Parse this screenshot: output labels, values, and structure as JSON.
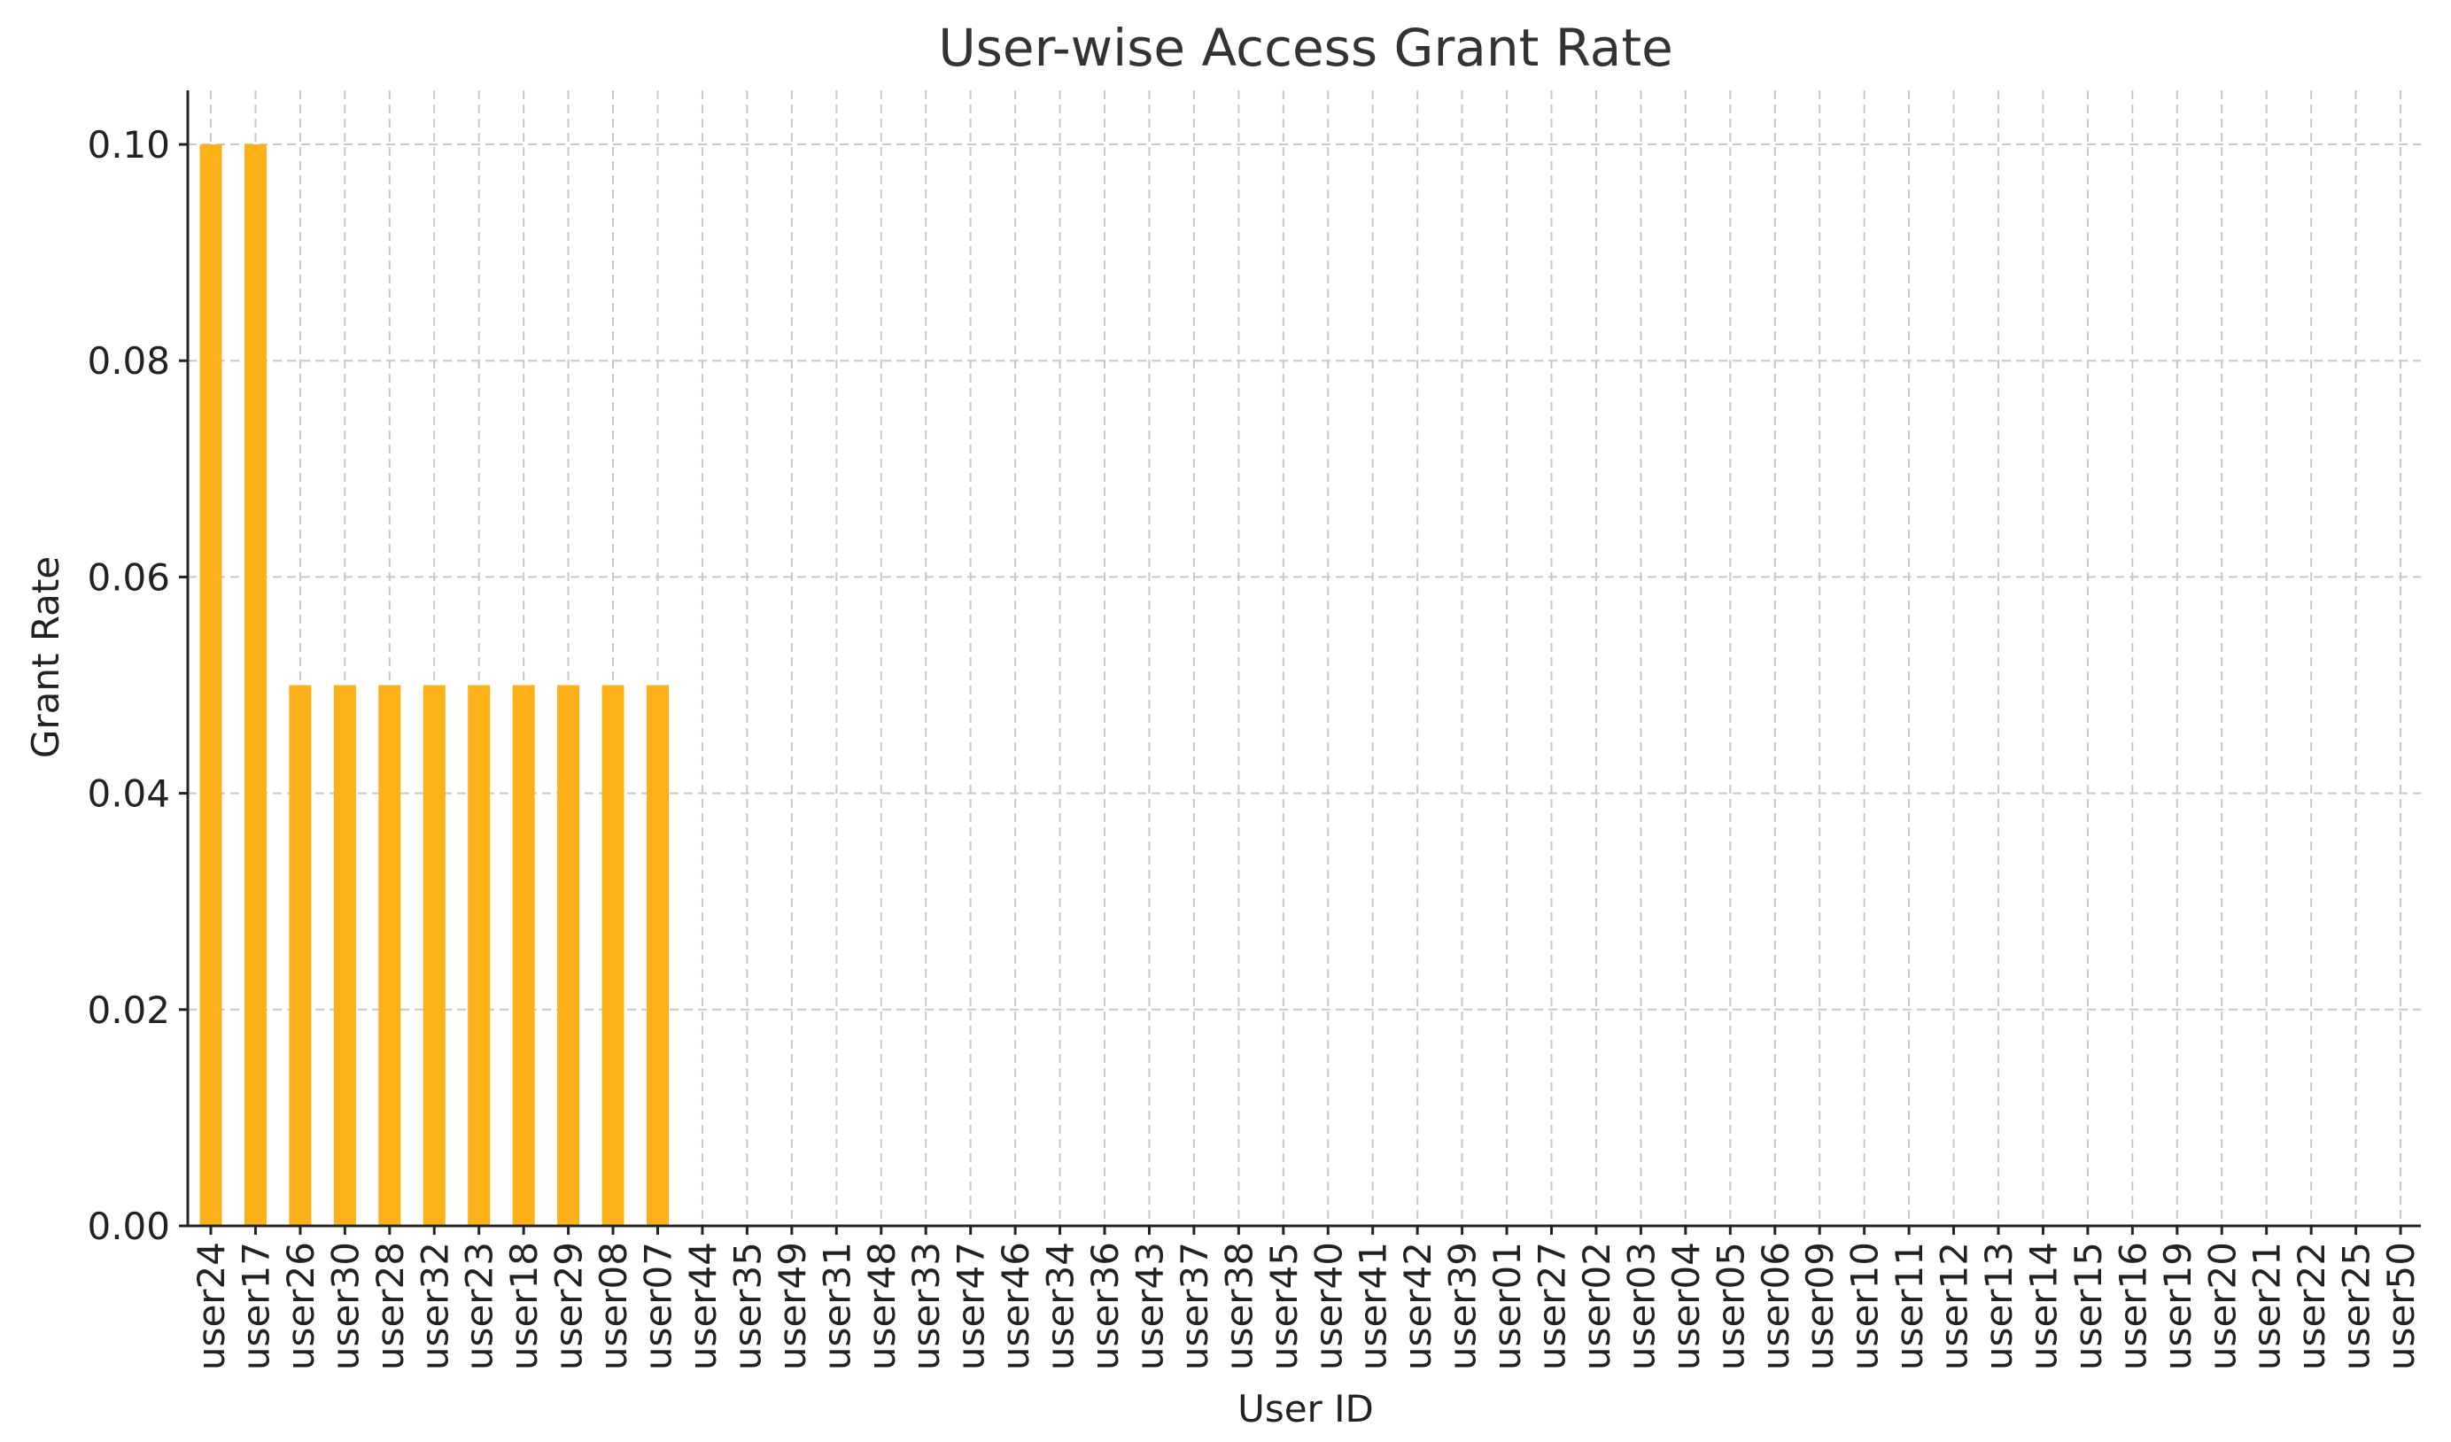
{
  "chart_data": {
    "type": "bar",
    "title": "User-wise Access Grant Rate",
    "xlabel": "User ID",
    "ylabel": "Grant Rate",
    "ylim": [
      0,
      0.105
    ],
    "yticks": [
      0.0,
      0.02,
      0.04,
      0.06,
      0.08,
      0.1
    ],
    "ytick_labels": [
      "0.00",
      "0.02",
      "0.04",
      "0.06",
      "0.08",
      "0.10"
    ],
    "grid": true,
    "bar_color": "#FBB117",
    "categories": [
      "user24",
      "user17",
      "user26",
      "user30",
      "user28",
      "user32",
      "user23",
      "user18",
      "user29",
      "user08",
      "user07",
      "user44",
      "user35",
      "user49",
      "user31",
      "user48",
      "user33",
      "user47",
      "user46",
      "user34",
      "user36",
      "user43",
      "user37",
      "user38",
      "user45",
      "user40",
      "user41",
      "user42",
      "user39",
      "user01",
      "user27",
      "user02",
      "user03",
      "user04",
      "user05",
      "user06",
      "user09",
      "user10",
      "user11",
      "user12",
      "user13",
      "user14",
      "user15",
      "user16",
      "user19",
      "user20",
      "user21",
      "user22",
      "user25",
      "user50"
    ],
    "values": [
      0.1,
      0.1,
      0.05,
      0.05,
      0.05,
      0.05,
      0.05,
      0.05,
      0.05,
      0.05,
      0.05,
      0,
      0,
      0,
      0,
      0,
      0,
      0,
      0,
      0,
      0,
      0,
      0,
      0,
      0,
      0,
      0,
      0,
      0,
      0,
      0,
      0,
      0,
      0,
      0,
      0,
      0,
      0,
      0,
      0,
      0,
      0,
      0,
      0,
      0,
      0,
      0,
      0,
      0,
      0
    ]
  }
}
